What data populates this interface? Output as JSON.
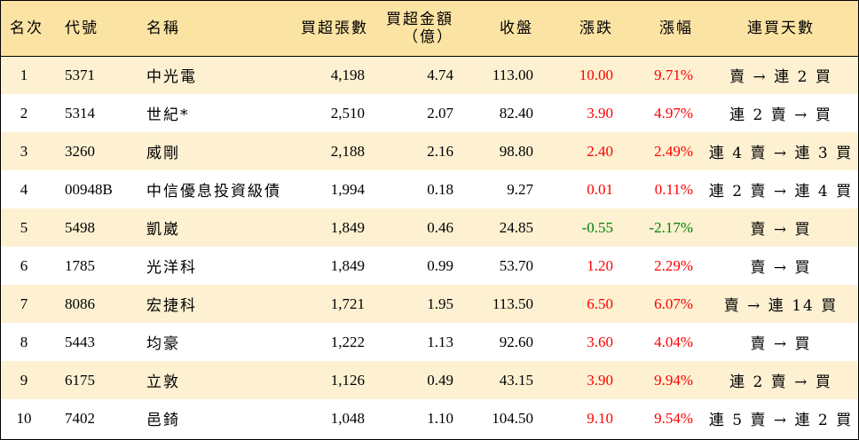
{
  "headers": {
    "rank": "名次",
    "code": "代號",
    "name": "名稱",
    "vol": "買超張數",
    "amt_line1": "買超金額",
    "amt_line2": "（億）",
    "close": "收盤",
    "chg": "漲跌",
    "pct": "漲幅",
    "days": "連買天數"
  },
  "colors": {
    "header_bg": "#fbe3a3",
    "odd_row_bg": "#fdf1d2",
    "even_row_bg": "#ffffff",
    "up": "#ff0000",
    "down": "#008000"
  },
  "rows": [
    {
      "rank": "1",
      "code": "5371",
      "name": "中光電",
      "vol": "4,198",
      "amt": "4.74",
      "close": "113.00",
      "chg": "10.00",
      "pct": "9.71%",
      "days": "賣 → 連 2 買",
      "dir": "up"
    },
    {
      "rank": "2",
      "code": "5314",
      "name": "世紀*",
      "vol": "2,510",
      "amt": "2.07",
      "close": "82.40",
      "chg": "3.90",
      "pct": "4.97%",
      "days": "連 2 賣 → 買",
      "dir": "up"
    },
    {
      "rank": "3",
      "code": "3260",
      "name": "威剛",
      "vol": "2,188",
      "amt": "2.16",
      "close": "98.80",
      "chg": "2.40",
      "pct": "2.49%",
      "days": "連 4 賣 → 連 3 買",
      "dir": "up"
    },
    {
      "rank": "4",
      "code": "00948B",
      "name": "中信優息投資級債",
      "vol": "1,994",
      "amt": "0.18",
      "close": "9.27",
      "chg": "0.01",
      "pct": "0.11%",
      "days": "連 2 賣 → 連 4 買",
      "dir": "up"
    },
    {
      "rank": "5",
      "code": "5498",
      "name": "凱崴",
      "vol": "1,849",
      "amt": "0.46",
      "close": "24.85",
      "chg": "-0.55",
      "pct": "-2.17%",
      "days": "賣 → 買",
      "dir": "down"
    },
    {
      "rank": "6",
      "code": "1785",
      "name": "光洋科",
      "vol": "1,849",
      "amt": "0.99",
      "close": "53.70",
      "chg": "1.20",
      "pct": "2.29%",
      "days": "賣 → 買",
      "dir": "up"
    },
    {
      "rank": "7",
      "code": "8086",
      "name": "宏捷科",
      "vol": "1,721",
      "amt": "1.95",
      "close": "113.50",
      "chg": "6.50",
      "pct": "6.07%",
      "days": "賣 → 連 14 買",
      "dir": "up"
    },
    {
      "rank": "8",
      "code": "5443",
      "name": "均豪",
      "vol": "1,222",
      "amt": "1.13",
      "close": "92.60",
      "chg": "3.60",
      "pct": "4.04%",
      "days": "賣 → 買",
      "dir": "up"
    },
    {
      "rank": "9",
      "code": "6175",
      "name": "立敦",
      "vol": "1,126",
      "amt": "0.49",
      "close": "43.15",
      "chg": "3.90",
      "pct": "9.94%",
      "days": "連 2 賣 → 買",
      "dir": "up"
    },
    {
      "rank": "10",
      "code": "7402",
      "name": "邑錡",
      "vol": "1,048",
      "amt": "1.10",
      "close": "104.50",
      "chg": "9.10",
      "pct": "9.54%",
      "days": "連 5 賣 → 連 2 買",
      "dir": "up"
    }
  ]
}
